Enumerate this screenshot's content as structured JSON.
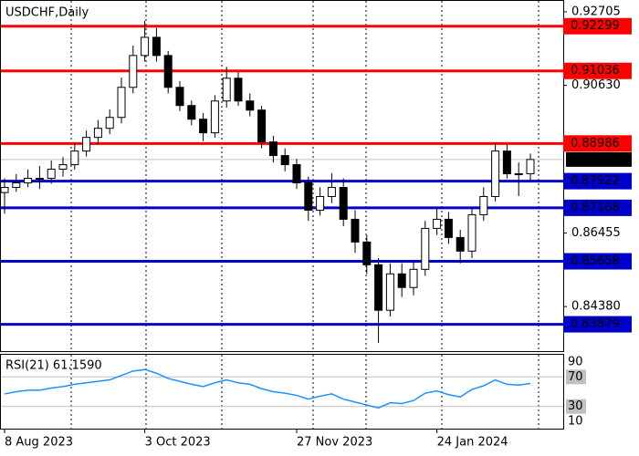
{
  "chart_data": {
    "type": "candlestick",
    "title": "USDCHF,Daily",
    "categories": [
      "8 Aug 2023",
      null,
      null,
      null,
      null,
      null,
      null,
      null,
      null,
      null,
      null,
      null,
      "3 Oct 2023",
      null,
      null,
      null,
      null,
      null,
      null,
      null,
      null,
      null,
      null,
      null,
      null,
      "27 Nov 2023",
      null,
      null,
      null,
      null,
      null,
      null,
      null,
      null,
      null,
      null,
      null,
      "24 Jan 2024",
      null,
      null,
      null,
      null,
      null,
      null,
      null,
      null
    ],
    "open": [
      0.876,
      0.87744,
      0.87873,
      0.88002,
      0.88002,
      0.88259,
      0.88387,
      0.88772,
      0.89158,
      0.89415,
      0.89723,
      0.90572,
      0.91471,
      0.91985,
      0.91471,
      0.90572,
      0.90058,
      0.89672,
      0.89287,
      0.90186,
      0.90829,
      0.90186,
      0.89929,
      0.8903,
      0.88644,
      0.88387,
      0.87873,
      0.87102,
      0.87488,
      0.87744,
      0.86845,
      0.86203,
      0.8556,
      0.84275,
      0.85303,
      0.84918,
      0.85431,
      0.86588,
      0.86845,
      0.86331,
      0.85946,
      0.86974,
      0.87488,
      0.88772,
      0.8813,
      0.8813
    ],
    "high": [
      0.88,
      0.8812,
      0.8825,
      0.8835,
      0.885,
      0.886,
      0.89,
      0.8935,
      0.8965,
      0.8995,
      0.9085,
      0.9175,
      0.9245,
      0.9225,
      0.916,
      0.9075,
      0.902,
      0.8985,
      0.9035,
      0.9115,
      0.91,
      0.904,
      0.9005,
      0.892,
      0.8885,
      0.8855,
      0.8805,
      0.8775,
      0.8815,
      0.88,
      0.871,
      0.864,
      0.8575,
      0.856,
      0.856,
      0.8565,
      0.868,
      0.872,
      0.8705,
      0.8655,
      0.872,
      0.8775,
      0.89,
      0.8895,
      0.8845,
      0.887
    ],
    "low": [
      0.87,
      0.8762,
      0.8775,
      0.877,
      0.8785,
      0.8805,
      0.8825,
      0.8862,
      0.8895,
      0.8925,
      0.8955,
      0.904,
      0.913,
      0.913,
      0.904,
      0.899,
      0.895,
      0.8905,
      0.8915,
      0.9,
      0.9005,
      0.8975,
      0.8885,
      0.8845,
      0.882,
      0.877,
      0.868,
      0.8695,
      0.873,
      0.8665,
      0.859,
      0.853,
      0.8335,
      0.841,
      0.8465,
      0.847,
      0.8525,
      0.864,
      0.8615,
      0.856,
      0.8575,
      0.868,
      0.8735,
      0.88,
      0.875,
      0.8795
    ],
    "close": [
      0.87744,
      0.87873,
      0.88002,
      0.88002,
      0.88259,
      0.88387,
      0.88772,
      0.89158,
      0.89415,
      0.89723,
      0.90572,
      0.91471,
      0.91985,
      0.91471,
      0.90572,
      0.90058,
      0.89672,
      0.89287,
      0.90186,
      0.90829,
      0.90186,
      0.89929,
      0.8903,
      0.88644,
      0.88387,
      0.87873,
      0.87102,
      0.87488,
      0.87744,
      0.86845,
      0.86203,
      0.8556,
      0.84275,
      0.85303,
      0.84918,
      0.85431,
      0.86588,
      0.86845,
      0.86331,
      0.85946,
      0.86974,
      0.87488,
      0.88772,
      0.8813,
      0.8813,
      0.88534
    ],
    "ylim": [
      0.83121,
      0.93013
    ],
    "yticks": [
      0.92705,
      {
        "value": 0.9063,
        "label": "0.90630"
      },
      0.86455,
      {
        "value": 0.8438,
        "label": "0.84380"
      }
    ],
    "levels": [
      {
        "value": 0.92299,
        "color": "#ff0000"
      },
      {
        "value": 0.91036,
        "color": "#ff0000"
      },
      {
        "value": 0.88986,
        "color": "#ff0000"
      },
      {
        "value": 0.87922,
        "color": "#0000cc"
      },
      {
        "value": 0.87168,
        "color": "#0000cc"
      },
      {
        "value": 0.85658,
        "color": "#0000cc"
      },
      {
        "value": 0.83879,
        "color": "#0000cc"
      }
    ],
    "current_price": 0.88534,
    "rsi": {
      "title": "RSI(21) 61.1590",
      "color": "#1e90ff",
      "values": [
        47,
        50,
        52,
        52,
        55,
        57,
        60,
        62,
        64,
        66,
        72,
        78,
        80,
        75,
        68,
        64,
        60,
        57,
        62,
        66,
        62,
        60,
        54,
        50,
        48,
        45,
        40,
        44,
        47,
        40,
        36,
        32,
        28,
        35,
        34,
        38,
        48,
        51,
        46,
        43,
        53,
        58,
        66,
        60,
        59,
        61.159
      ],
      "ylim": [
        0,
        100
      ],
      "yticks": [
        90,
        70,
        30,
        10
      ],
      "level_ticks": [
        70,
        30
      ]
    }
  }
}
